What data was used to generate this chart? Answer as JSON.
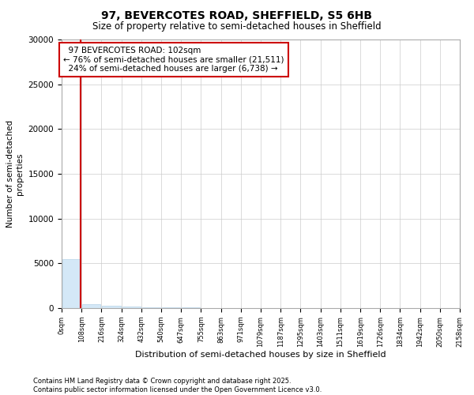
{
  "title": "97, BEVERCOTES ROAD, SHEFFIELD, S5 6HB",
  "subtitle": "Size of property relative to semi-detached houses in Sheffield",
  "xlabel": "Distribution of semi-detached houses by size in Sheffield",
  "ylabel": "Number of semi-detached\nproperties",
  "property_size": 102,
  "property_label": "97 BEVERCOTES ROAD: 102sqm",
  "pct_smaller": 76,
  "n_smaller": 21511,
  "pct_larger": 24,
  "n_larger": 6738,
  "bin_width": 108,
  "ylim": [
    0,
    30000
  ],
  "bar_color": "#d4e8f7",
  "bar_edge_color": "#b8d4e8",
  "line_color": "#cc0000",
  "annotation_box_color": "#cc0000",
  "footer_text": "Contains HM Land Registry data © Crown copyright and database right 2025.\nContains public sector information licensed under the Open Government Licence v3.0.",
  "bins": [
    0,
    108,
    216,
    324,
    432,
    540,
    647,
    755,
    863,
    971,
    1079,
    1187,
    1295,
    1403,
    1511,
    1619,
    1726,
    1834,
    1942,
    2050,
    2158
  ],
  "counts": [
    5500,
    400,
    250,
    160,
    100,
    70,
    50,
    35,
    25,
    18,
    13,
    9,
    7,
    5,
    4,
    3,
    2,
    2,
    1,
    1
  ]
}
